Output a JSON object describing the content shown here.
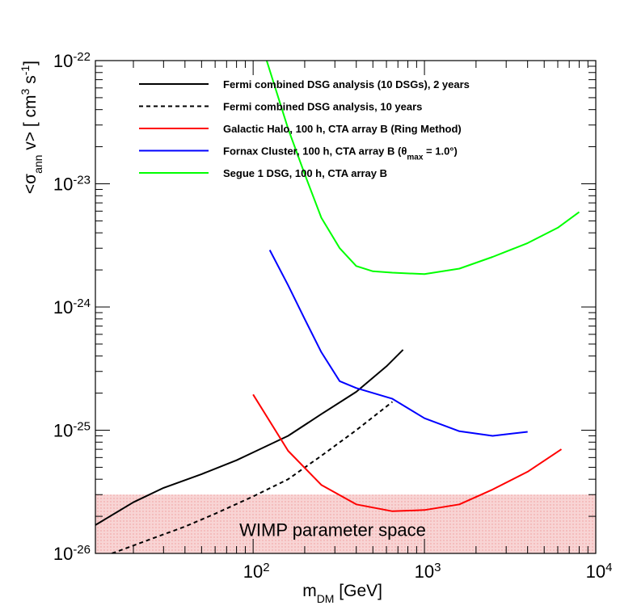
{
  "chart_data": {
    "type": "line",
    "xscale": "log",
    "yscale": "log",
    "xlim": [
      12,
      10000
    ],
    "ylim": [
      1e-26,
      1e-22
    ],
    "xlabel": {
      "main": "m",
      "sub": "DM",
      "rest": " [GeV]"
    },
    "ylabel": {
      "pre": "<σ",
      "sub": "ann",
      "mid": " v> [ cm",
      "sup1": "3",
      "mid2": " s",
      "sup2": "-1",
      "post": "]"
    },
    "x_ticks": [
      {
        "value": 100,
        "base": "10",
        "exp": "2"
      },
      {
        "value": 1000,
        "base": "10",
        "exp": "3"
      },
      {
        "value": 10000,
        "base": "10",
        "exp": "4"
      }
    ],
    "y_ticks": [
      {
        "value": 1e-22,
        "base": "10",
        "exp": "-22"
      },
      {
        "value": 1e-23,
        "base": "10",
        "exp": "-23"
      },
      {
        "value": 1e-24,
        "base": "10",
        "exp": "-24"
      },
      {
        "value": 1e-25,
        "base": "10",
        "exp": "-25"
      },
      {
        "value": 1e-26,
        "base": "10",
        "exp": "-26"
      }
    ],
    "band": {
      "label": "WIMP parameter space",
      "ymin": 1e-26,
      "ymax": 3e-26,
      "color": "#f6c6c6"
    },
    "series": [
      {
        "name": "Fermi combined DSG analysis (10 DSGs), 2 years",
        "color": "#000000",
        "dash": "solid",
        "x": [
          12,
          20,
          30,
          50,
          80,
          100,
          160,
          250,
          400,
          600,
          750
        ],
        "y": [
          1.7e-26,
          2.6e-26,
          3.4e-26,
          4.4e-26,
          5.7e-26,
          6.6e-26,
          9e-26,
          1.35e-25,
          2.05e-25,
          3.3e-25,
          4.5e-25
        ]
      },
      {
        "name": "Fermi combined DSG analysis, 10 years",
        "legend_name": "Fermi combined DSG analysis, 10 years",
        "color": "#000000",
        "dash": "dashed",
        "x": [
          15,
          25,
          40,
          60,
          100,
          160,
          250,
          400,
          650
        ],
        "y": [
          1e-26,
          1.3e-26,
          1.65e-26,
          2.1e-26,
          2.9e-26,
          4e-26,
          6.2e-26,
          1e-25,
          1.7e-25
        ]
      },
      {
        "name": "Galactic Halo, 100 h, CTA array B (Ring Method)",
        "color": "#ff0000",
        "dash": "solid",
        "x": [
          100,
          160,
          250,
          400,
          650,
          1000,
          1600,
          2500,
          4000,
          6300
        ],
        "y": [
          1.95e-25,
          6.8e-26,
          3.6e-26,
          2.5e-26,
          2.2e-26,
          2.25e-26,
          2.5e-26,
          3.3e-26,
          4.6e-26,
          7e-26
        ]
      },
      {
        "name": "Fornax Cluster, 100 h, CTA array B (",
        "theta_label": {
          "pre": "Fornax Cluster, 100 h, CTA array B (",
          "sym": "θ",
          "sub": "max",
          "post": " = 1.0°)"
        },
        "color": "#0000ff",
        "dash": "solid",
        "x": [
          125,
          160,
          200,
          250,
          320,
          400,
          650,
          1000,
          1600,
          2500,
          4000
        ],
        "y": [
          2.9e-24,
          1.5e-24,
          8e-25,
          4.3e-25,
          2.5e-25,
          2.2e-25,
          1.8e-25,
          1.25e-25,
          9.8e-26,
          9e-26,
          9.7e-26
        ]
      },
      {
        "name": "Segue 1 DSG, 100 h, CTA array B",
        "color": "#00ff00",
        "dash": "solid",
        "x": [
          120,
          160,
          200,
          250,
          320,
          400,
          500,
          650,
          1000,
          1600,
          2500,
          4000,
          6000,
          8000
        ],
        "y": [
          1e-22,
          2.8e-23,
          1.2e-23,
          5.3e-24,
          3e-24,
          2.15e-24,
          1.95e-24,
          1.9e-24,
          1.85e-24,
          2.05e-24,
          2.55e-24,
          3.3e-24,
          4.4e-24,
          5.9e-24
        ]
      }
    ]
  }
}
